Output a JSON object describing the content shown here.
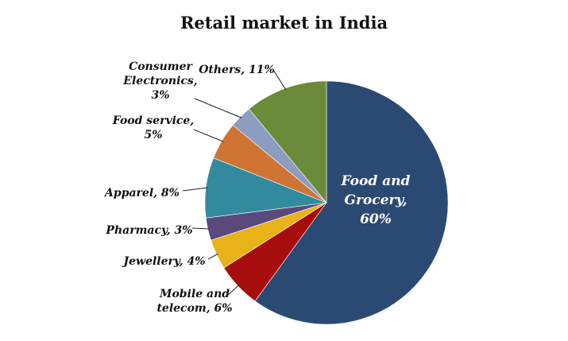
{
  "chart_data": {
    "type": "pie",
    "title": "Retail market in India",
    "categories": [
      "Food and Grocery",
      "Mobile and telecom",
      "Jewellery",
      "Pharmacy",
      "Apparel",
      "Food service",
      "Consumer Electronics",
      "Others"
    ],
    "values": [
      60,
      6,
      4,
      3,
      8,
      5,
      3,
      11
    ],
    "unit": "%",
    "colors": [
      "#2b4a73",
      "#a80d0d",
      "#e8b218",
      "#5a4a7c",
      "#318a9e",
      "#cf7433",
      "#8d9dc2",
      "#6b8a3a"
    ],
    "data_labels": [
      [
        "Food and",
        "Grocery,",
        "60%"
      ],
      [
        "Mobile and",
        "telecom, 6%"
      ],
      [
        "Jewellery, 4%"
      ],
      [
        "Pharmacy, 3%"
      ],
      [
        "Apparel, 8%"
      ],
      [
        "Food service,",
        "5%"
      ],
      [
        "Consumer",
        "Electronics,",
        "3%"
      ],
      [
        "Others, 11%"
      ]
    ],
    "legend": "none"
  }
}
